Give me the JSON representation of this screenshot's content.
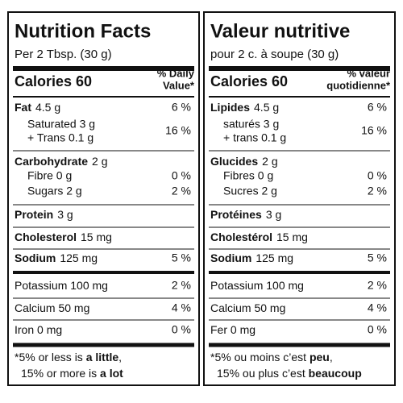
{
  "panels": [
    {
      "title": "Nutrition Facts",
      "serving": "Per 2 Tbsp. (30 g)",
      "calories": "Calories 60",
      "dv_header": [
        "% Daily",
        "Value*"
      ],
      "rows": [
        {
          "name": "Fat",
          "amount": "4.5 g",
          "dv": "6 %"
        },
        {
          "lines": [
            "Saturated 3 g",
            "+ Trans 0.1 g"
          ],
          "dv": "16 %"
        },
        {
          "name": "Carbohydrate",
          "amount": "2 g"
        },
        {
          "lines": [
            "Fibre 0 g"
          ],
          "dv": "0 %"
        },
        {
          "lines": [
            "Sugars 2 g"
          ],
          "dv": "2 %"
        },
        {
          "name": "Protein",
          "amount": "3 g"
        },
        {
          "name": "Cholesterol",
          "amount": "15 mg"
        },
        {
          "name": "Sodium",
          "amount": "125 mg",
          "dv": "5 %"
        },
        {
          "amount": "Potassium 100 mg",
          "dv": "2 %"
        },
        {
          "amount": "Calcium 50 mg",
          "dv": "4 %"
        },
        {
          "amount": "Iron 0 mg",
          "dv": "0 %"
        }
      ],
      "footnote": [
        [
          {
            "text": "*5% or less is "
          },
          {
            "bold": "a little"
          },
          {
            "text": ","
          }
        ],
        [
          {
            "text": "15% or more is "
          },
          {
            "bold": "a lot"
          }
        ]
      ]
    },
    {
      "title": "Valeur nutritive",
      "serving": "pour 2 c. à soupe (30 g)",
      "calories": "Calories 60",
      "dv_header": [
        "% valeur",
        "quotidienne*"
      ],
      "rows": [
        {
          "name": "Lipides",
          "amount": "4.5 g",
          "dv": "6 %"
        },
        {
          "lines": [
            "saturés 3 g",
            "+ trans 0.1 g"
          ],
          "dv": "16 %"
        },
        {
          "name": "Glucides",
          "amount": "2 g"
        },
        {
          "lines": [
            "Fibres 0 g"
          ],
          "dv": "0 %"
        },
        {
          "lines": [
            "Sucres 2 g"
          ],
          "dv": "2 %"
        },
        {
          "name": "Protéines",
          "amount": "3 g"
        },
        {
          "name": "Cholestérol",
          "amount": "15 mg"
        },
        {
          "name": "Sodium",
          "amount": "125 mg",
          "dv": "5 %"
        },
        {
          "amount": "Potassium 100 mg",
          "dv": "2 %"
        },
        {
          "amount": "Calcium 50 mg",
          "dv": "4 %"
        },
        {
          "amount": "Fer 0 mg",
          "dv": "0 %"
        }
      ],
      "footnote": [
        [
          {
            "text": "*5% ou moins c’est "
          },
          {
            "bold": "peu"
          },
          {
            "text": ","
          }
        ],
        [
          {
            "text": "15% ou plus c’est "
          },
          {
            "bold": "beaucoup"
          }
        ]
      ]
    }
  ]
}
